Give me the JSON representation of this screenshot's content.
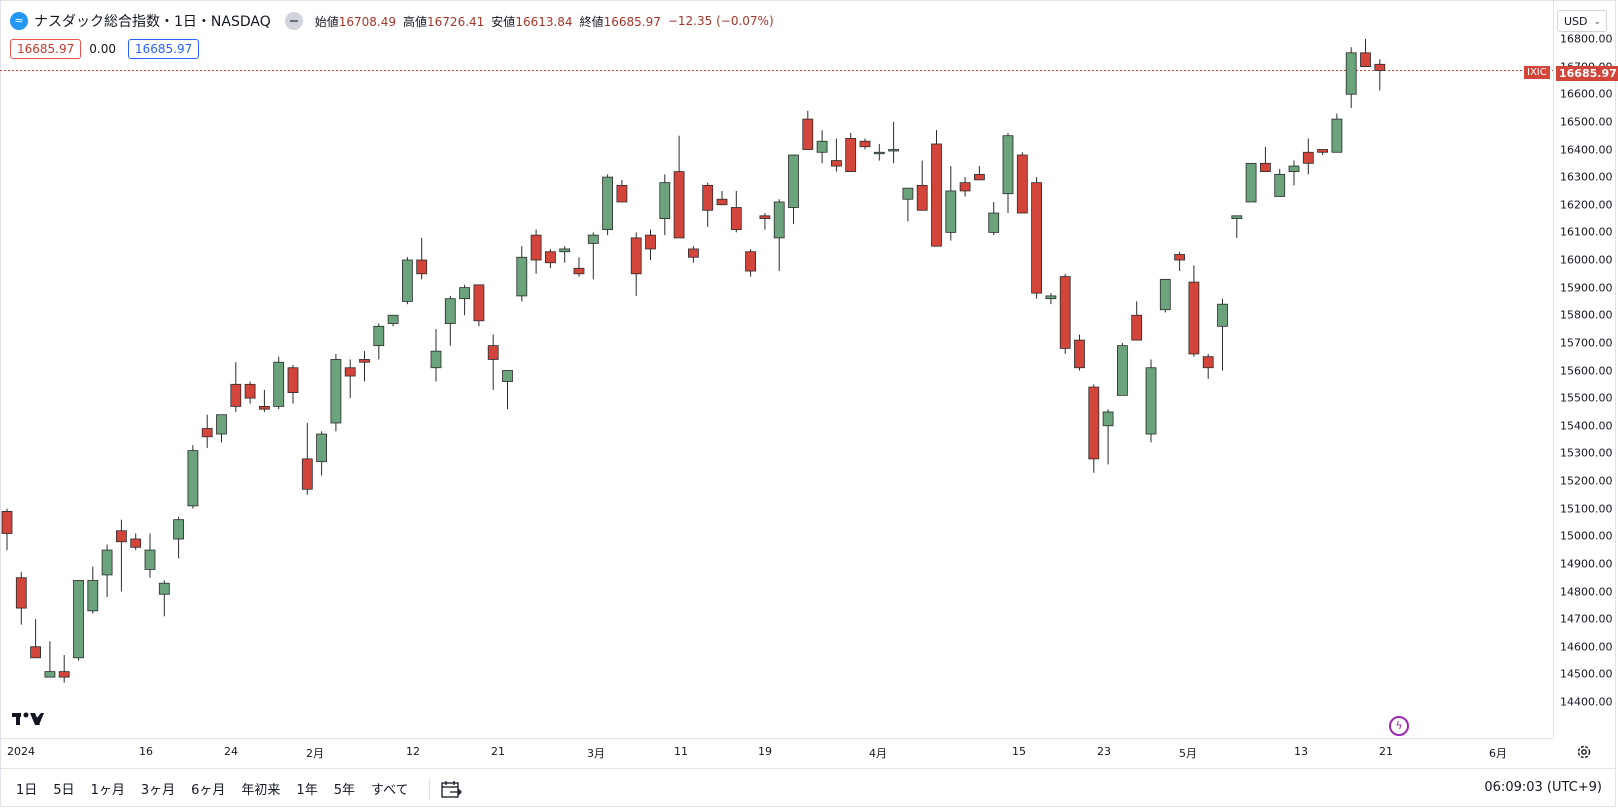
{
  "symbol": {
    "title": "ナスダック総合指数・1日・NASDAQ",
    "icon": "trend-icon"
  },
  "ohlc": {
    "open_label": "始値",
    "open": "16708.49",
    "high_label": "高値",
    "high": "16726.41",
    "low_label": "安値",
    "low": "16613.84",
    "close_label": "終値",
    "close": "16685.97",
    "change": "−12.35 (−0.07%)"
  },
  "quote": {
    "bid": "16685.97",
    "spread": "0.00",
    "ask": "16685.97"
  },
  "currency": "USD",
  "price_tag": {
    "ticker": "IXIC",
    "price": "16685.97"
  },
  "bottom_bar": {
    "ranges": [
      "1日",
      "5日",
      "1ヶ月",
      "3ヶ月",
      "6ヶ月",
      "年初来",
      "1年",
      "5年",
      "すべて"
    ],
    "clock": "06:09:03 (UTC+9)"
  },
  "colors": {
    "up": "#6aa37c",
    "down": "#d3453a",
    "up_wick": "#3a5a45",
    "price_line": "#d3453a"
  },
  "chart_data": {
    "type": "candlestick",
    "y_ticks": [
      "16800.00",
      "16700.00",
      "16600.00",
      "16500.00",
      "16400.00",
      "16300.00",
      "16200.00",
      "16100.00",
      "16000.00",
      "15900.00",
      "15800.00",
      "15700.00",
      "15600.00",
      "15500.00",
      "15400.00",
      "15300.00",
      "15200.00",
      "15100.00",
      "15000.00",
      "14900.00",
      "14800.00",
      "14700.00",
      "14600.00",
      "14500.00",
      "14400.00"
    ],
    "ylim": [
      14370,
      16840
    ],
    "x_ticks": [
      "2024",
      "16",
      "24",
      "2月",
      "12",
      "21",
      "3月",
      "11",
      "19",
      "4月",
      "15",
      "23",
      "5月",
      "13",
      "21",
      "6月"
    ],
    "last_price": 16685.97,
    "candles": [
      [
        0,
        15090,
        15100,
        14950,
        15010
      ],
      [
        1,
        14850,
        14870,
        14680,
        14740
      ],
      [
        2,
        14600,
        14700,
        14580,
        14560
      ],
      [
        3,
        14490,
        14620,
        14510,
        14510
      ],
      [
        4,
        14510,
        14570,
        14470,
        14490
      ],
      [
        5,
        14560,
        14840,
        14550,
        14840
      ],
      [
        6,
        14730,
        14890,
        14720,
        14840
      ],
      [
        7,
        14860,
        14970,
        14780,
        14950
      ],
      [
        8,
        15020,
        15060,
        14800,
        14980
      ],
      [
        9,
        14990,
        15010,
        14950,
        14960
      ],
      [
        10,
        14880,
        15010,
        14850,
        14950
      ],
      [
        11,
        14790,
        14840,
        14710,
        14830
      ],
      [
        12,
        14990,
        15070,
        14920,
        15060
      ],
      [
        13,
        15110,
        15330,
        15100,
        15310
      ],
      [
        14,
        15390,
        15440,
        15320,
        15360
      ],
      [
        15,
        15370,
        15440,
        15340,
        15440
      ],
      [
        16,
        15550,
        15630,
        15450,
        15470
      ],
      [
        17,
        15550,
        15560,
        15480,
        15500
      ],
      [
        18,
        15470,
        15530,
        15450,
        15460
      ],
      [
        19,
        15470,
        15650,
        15460,
        15630
      ],
      [
        20,
        15610,
        15620,
        15480,
        15520
      ],
      [
        21,
        15280,
        15410,
        15150,
        15170
      ],
      [
        22,
        15270,
        15380,
        15220,
        15370
      ],
      [
        23,
        15410,
        15660,
        15380,
        15640
      ],
      [
        24,
        15610,
        15640,
        15500,
        15580
      ],
      [
        25,
        15640,
        15670,
        15560,
        15630
      ],
      [
        26,
        15690,
        15770,
        15640,
        15760
      ],
      [
        27,
        15770,
        15800,
        15760,
        15800
      ],
      [
        28,
        15850,
        16010,
        15840,
        16000
      ],
      [
        29,
        16000,
        16080,
        15930,
        15950
      ],
      [
        30,
        15610,
        15750,
        15560,
        15670
      ],
      [
        31,
        15770,
        15870,
        15690,
        15860
      ],
      [
        32,
        15860,
        15910,
        15800,
        15900
      ],
      [
        33,
        15910,
        15910,
        15760,
        15780
      ],
      [
        34,
        15690,
        15730,
        15530,
        15640
      ],
      [
        35,
        15560,
        15580,
        15460,
        15600
      ],
      [
        36,
        15870,
        16050,
        15850,
        16010
      ],
      [
        37,
        16090,
        16110,
        15950,
        16000
      ],
      [
        38,
        16030,
        16040,
        15970,
        15990
      ],
      [
        39,
        16030,
        16050,
        15990,
        16040
      ],
      [
        40,
        15970,
        16010,
        15940,
        15950
      ],
      [
        41,
        16060,
        16100,
        15930,
        16090
      ],
      [
        42,
        16110,
        16310,
        16090,
        16300
      ],
      [
        43,
        16270,
        16290,
        16220,
        16210
      ],
      [
        44,
        16080,
        16100,
        15870,
        15950
      ],
      [
        45,
        16090,
        16110,
        16000,
        16040
      ],
      [
        46,
        16150,
        16310,
        16090,
        16280
      ],
      [
        47,
        16320,
        16450,
        16080,
        16080
      ],
      [
        48,
        16040,
        16050,
        15990,
        16010
      ],
      [
        49,
        16270,
        16280,
        16120,
        16180
      ],
      [
        50,
        16220,
        16250,
        16200,
        16200
      ],
      [
        51,
        16190,
        16250,
        16100,
        16110
      ],
      [
        52,
        16030,
        16040,
        15940,
        15960
      ],
      [
        53,
        16160,
        16170,
        16110,
        16150
      ],
      [
        54,
        16080,
        16220,
        15960,
        16210
      ],
      [
        55,
        16190,
        16380,
        16130,
        16380
      ],
      [
        56,
        16510,
        16540,
        16420,
        16400
      ],
      [
        57,
        16390,
        16470,
        16350,
        16430
      ],
      [
        58,
        16360,
        16440,
        16320,
        16340
      ],
      [
        59,
        16440,
        16460,
        16320,
        16320
      ],
      [
        60,
        16430,
        16440,
        16400,
        16410
      ],
      [
        61,
        16390,
        16420,
        16360,
        16390
      ],
      [
        62,
        16400,
        16500,
        16350,
        16400
      ],
      [
        63,
        16220,
        16240,
        16140,
        16260
      ],
      [
        64,
        16270,
        16360,
        16180,
        16180
      ],
      [
        65,
        16420,
        16470,
        16050,
        16050
      ],
      [
        66,
        16100,
        16340,
        16070,
        16250
      ],
      [
        67,
        16280,
        16300,
        16230,
        16250
      ],
      [
        68,
        16310,
        16340,
        16290,
        16290
      ],
      [
        69,
        16100,
        16210,
        16090,
        16170
      ],
      [
        70,
        16240,
        16460,
        16170,
        16450
      ],
      [
        71,
        16380,
        16390,
        16170,
        16170
      ],
      [
        72,
        16280,
        16300,
        15860,
        15880
      ],
      [
        73,
        15860,
        15880,
        15840,
        15870
      ],
      [
        74,
        15940,
        15950,
        15660,
        15680
      ],
      [
        75,
        15710,
        15730,
        15600,
        15610
      ],
      [
        76,
        15540,
        15550,
        15230,
        15280
      ],
      [
        77,
        15400,
        15460,
        15260,
        15450
      ],
      [
        78,
        15510,
        15700,
        15520,
        15690
      ],
      [
        79,
        15800,
        15850,
        15710,
        15710
      ],
      [
        80,
        15370,
        15640,
        15340,
        15610
      ],
      [
        81,
        15820,
        15930,
        15810,
        15930
      ],
      [
        82,
        16020,
        16030,
        15960,
        16000
      ],
      [
        83,
        15920,
        15980,
        15650,
        15660
      ],
      [
        84,
        15650,
        15660,
        15570,
        15610
      ],
      [
        85,
        15760,
        15860,
        15600,
        15840
      ],
      [
        86,
        16150,
        16160,
        16080,
        16160
      ],
      [
        87,
        16210,
        16350,
        16210,
        16350
      ],
      [
        88,
        16350,
        16410,
        16320,
        16320
      ],
      [
        89,
        16230,
        16330,
        16230,
        16310
      ],
      [
        90,
        16320,
        16360,
        16270,
        16340
      ],
      [
        91,
        16390,
        16440,
        16310,
        16350
      ],
      [
        92,
        16400,
        16400,
        16380,
        16390
      ],
      [
        93,
        16390,
        16530,
        16400,
        16510
      ],
      [
        94,
        16600,
        16770,
        16550,
        16750
      ],
      [
        95,
        16750,
        16800,
        16700,
        16700
      ],
      [
        96,
        16708.49,
        16726.41,
        16613.84,
        16685.97
      ]
    ]
  }
}
